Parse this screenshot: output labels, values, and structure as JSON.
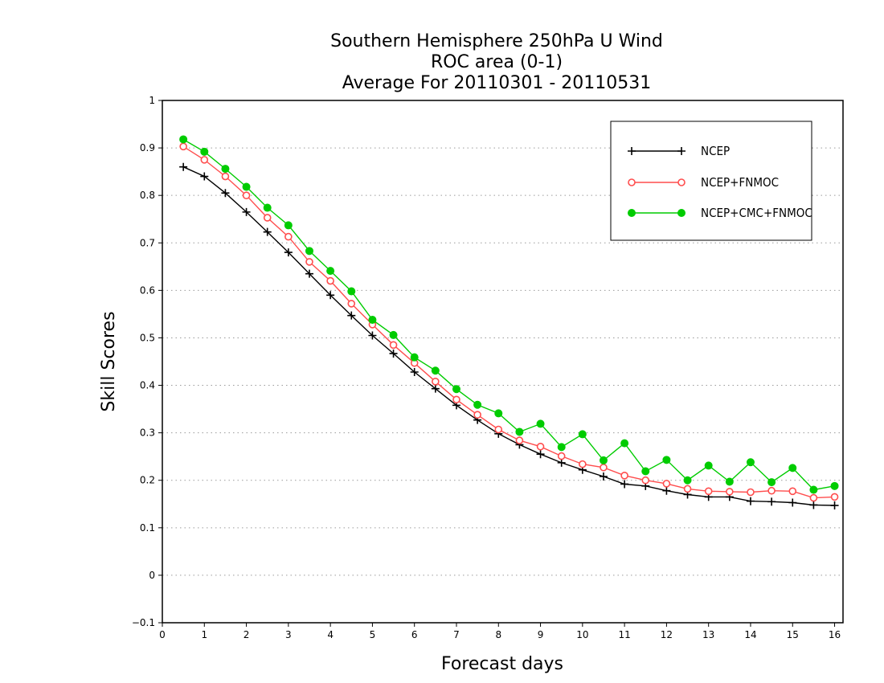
{
  "chart_data": {
    "type": "line",
    "title": [
      "Southern Hemisphere 250hPa U Wind",
      "ROC area (0-1)",
      "Average For 20110301 - 20110531"
    ],
    "xlabel": "Forecast days",
    "ylabel": "Skill Scores",
    "xlim": [
      0,
      16.2
    ],
    "ylim": [
      -0.1,
      1
    ],
    "xticks": [
      0,
      1,
      2,
      3,
      4,
      5,
      6,
      7,
      8,
      9,
      10,
      11,
      12,
      13,
      14,
      15,
      16
    ],
    "yticks": [
      -0.1,
      0,
      0.1,
      0.2,
      0.3,
      0.4,
      0.5,
      0.6,
      0.7,
      0.8,
      0.9,
      1
    ],
    "grid": "horizontal-dotted",
    "legend_position": "top-right",
    "x": [
      0.5,
      1,
      1.5,
      2,
      2.5,
      3,
      3.5,
      4,
      4.5,
      5,
      5.5,
      6,
      6.5,
      7,
      7.5,
      8,
      8.5,
      9,
      9.5,
      10,
      10.5,
      11,
      11.5,
      12,
      12.5,
      13,
      13.5,
      14,
      14.5,
      15,
      15.5,
      16
    ],
    "series": [
      {
        "name": "NCEP",
        "color": "#000000",
        "marker": "plus",
        "values": [
          0.86,
          0.84,
          0.805,
          0.765,
          0.723,
          0.68,
          0.635,
          0.59,
          0.547,
          0.505,
          0.467,
          0.428,
          0.393,
          0.358,
          0.327,
          0.298,
          0.275,
          0.255,
          0.237,
          0.222,
          0.208,
          0.192,
          0.188,
          0.178,
          0.17,
          0.165,
          0.165,
          0.156,
          0.155,
          0.153,
          0.148,
          0.147
        ]
      },
      {
        "name": "NCEP+FNMOC",
        "color": "#ff4d4d",
        "marker": "open-circle",
        "values": [
          0.903,
          0.875,
          0.84,
          0.8,
          0.753,
          0.713,
          0.66,
          0.62,
          0.572,
          0.528,
          0.485,
          0.447,
          0.408,
          0.37,
          0.338,
          0.307,
          0.284,
          0.271,
          0.251,
          0.234,
          0.227,
          0.21,
          0.2,
          0.193,
          0.182,
          0.177,
          0.176,
          0.175,
          0.178,
          0.177,
          0.163,
          0.165
        ]
      },
      {
        "name": "NCEP+CMC+FNMOC",
        "color": "#00cc00",
        "marker": "filled-circle",
        "values": [
          0.918,
          0.892,
          0.856,
          0.818,
          0.774,
          0.737,
          0.683,
          0.641,
          0.598,
          0.538,
          0.506,
          0.459,
          0.431,
          0.392,
          0.359,
          0.341,
          0.302,
          0.319,
          0.27,
          0.297,
          0.242,
          0.278,
          0.219,
          0.243,
          0.2,
          0.231,
          0.197,
          0.238,
          0.196,
          0.226,
          0.18,
          0.188
        ]
      }
    ]
  }
}
